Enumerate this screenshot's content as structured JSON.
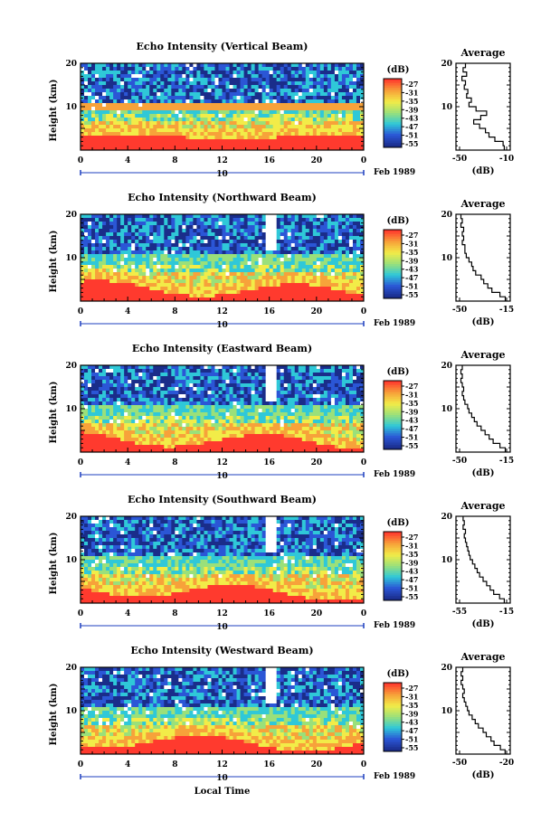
{
  "figure": {
    "xlabel": "Local Time",
    "date_label": "Feb 1989",
    "day_label": "10",
    "colorbar_unit": "(dB)",
    "colorbar_ticks": [
      "-27",
      "-31",
      "-35",
      "-39",
      "-43",
      "-47",
      "-51",
      "-55"
    ],
    "colors": {
      "red": "#ff3a2e",
      "orange": "#f7a23a",
      "yellow": "#f2ec48",
      "green": "#9ae07a",
      "cyan": "#2fc8d8",
      "blue": "#2b56d6",
      "navy": "#1a2d8a",
      "axis_marker": "#1d3fbf"
    }
  },
  "chart_data": [
    {
      "type": "heatmap",
      "title": "Echo Intensity (Vertical Beam)",
      "ylabel": "Height (km)",
      "xlim": [
        0,
        24
      ],
      "ylim": [
        0,
        20
      ],
      "x_ticks": [
        "0",
        "4",
        "8",
        "12",
        "16",
        "20",
        "0"
      ],
      "y_ticks": [
        "20",
        "10"
      ],
      "colorbar": {
        "label": "(dB)",
        "range": [
          -55,
          -27
        ],
        "ticks": [
          "-27",
          "-31",
          "-35",
          "-39",
          "-43",
          "-47",
          "-51",
          "-55"
        ]
      },
      "average_profile": {
        "title": "Average",
        "xlabel": "(dB)",
        "xlim": [
          -50,
          -10
        ],
        "x_ticks": [
          "-50",
          "-10"
        ],
        "y_ticks": [
          "20",
          "10"
        ],
        "height_km": [
          1,
          2,
          3,
          4,
          5,
          6,
          7,
          8,
          9,
          10,
          11,
          12,
          13,
          14,
          15,
          16,
          17,
          18,
          19,
          20
        ],
        "db": [
          -12,
          -13,
          -20,
          -25,
          -28,
          -33,
          -38,
          -32,
          -27,
          -36,
          -42,
          -40,
          -44,
          -43,
          -46,
          -45,
          -48,
          -44,
          -47,
          -45
        ]
      }
    },
    {
      "type": "heatmap",
      "title": "Echo Intensity (Northward Beam)",
      "ylabel": "Height (km)",
      "xlim": [
        0,
        24
      ],
      "ylim": [
        0,
        20
      ],
      "x_ticks": [
        "0",
        "4",
        "8",
        "12",
        "16",
        "20",
        "0"
      ],
      "y_ticks": [
        "20",
        "10"
      ],
      "colorbar": {
        "label": "(dB)",
        "range": [
          -55,
          -27
        ],
        "ticks": [
          "-27",
          "-31",
          "-35",
          "-39",
          "-43",
          "-47",
          "-51",
          "-55"
        ]
      },
      "average_profile": {
        "title": "Average",
        "xlabel": "(dB)",
        "xlim": [
          -50,
          -15
        ],
        "x_ticks": [
          "-50",
          "-15"
        ],
        "y_ticks": [
          "20",
          "10"
        ],
        "height_km": [
          1,
          2,
          3,
          4,
          5,
          6,
          7,
          8,
          9,
          10,
          11,
          12,
          13,
          14,
          15,
          16,
          17,
          18,
          19,
          20
        ],
        "db": [
          -16,
          -20,
          -26,
          -29,
          -32,
          -34,
          -38,
          -40,
          -41,
          -43,
          -45,
          -46,
          -46,
          -48,
          -47,
          -48,
          -47,
          -49,
          -48,
          -49
        ]
      }
    },
    {
      "type": "heatmap",
      "title": "Echo Intensity (Eastward Beam)",
      "ylabel": "Height (km)",
      "xlim": [
        0,
        24
      ],
      "ylim": [
        0,
        20
      ],
      "x_ticks": [
        "0",
        "4",
        "8",
        "12",
        "16",
        "20",
        "0"
      ],
      "y_ticks": [
        "20",
        "10"
      ],
      "colorbar": {
        "label": "(dB)",
        "range": [
          -55,
          -27
        ],
        "ticks": [
          "-27",
          "-31",
          "-35",
          "-39",
          "-43",
          "-47",
          "-51",
          "-55"
        ]
      },
      "average_profile": {
        "title": "Average",
        "xlabel": "(dB)",
        "xlim": [
          -50,
          -15
        ],
        "x_ticks": [
          "-50",
          "-15"
        ],
        "y_ticks": [
          "20",
          "10"
        ],
        "height_km": [
          1,
          2,
          3,
          4,
          5,
          6,
          7,
          8,
          9,
          10,
          11,
          12,
          13,
          14,
          15,
          16,
          17,
          18,
          19,
          20
        ],
        "db": [
          -16,
          -20,
          -25,
          -28,
          -31,
          -34,
          -37,
          -39,
          -41,
          -43,
          -44,
          -46,
          -47,
          -48,
          -47,
          -48,
          -49,
          -48,
          -49,
          -48
        ]
      }
    },
    {
      "type": "heatmap",
      "title": "Echo Intensity (Southward Beam)",
      "ylabel": "Height (km)",
      "xlim": [
        0,
        24
      ],
      "ylim": [
        0,
        20
      ],
      "x_ticks": [
        "0",
        "4",
        "8",
        "12",
        "16",
        "20",
        "0"
      ],
      "y_ticks": [
        "20",
        "10"
      ],
      "colorbar": {
        "label": "(dB)",
        "range": [
          -55,
          -27
        ],
        "ticks": [
          "-27",
          "-31",
          "-35",
          "-39",
          "-43",
          "-47",
          "-51",
          "-55"
        ]
      },
      "average_profile": {
        "title": "Average",
        "xlabel": "(dB)",
        "xlim": [
          -55,
          -15
        ],
        "x_ticks": [
          "-55",
          "-15"
        ],
        "y_ticks": [
          "20",
          "10"
        ],
        "height_km": [
          1,
          2,
          3,
          4,
          5,
          6,
          7,
          8,
          9,
          10,
          11,
          12,
          13,
          14,
          15,
          16,
          17,
          18,
          19,
          20
        ],
        "db": [
          -17,
          -21,
          -26,
          -29,
          -32,
          -35,
          -38,
          -40,
          -42,
          -44,
          -46,
          -47,
          -48,
          -49,
          -50,
          -51,
          -50,
          -52,
          -51,
          -52
        ]
      }
    },
    {
      "type": "heatmap",
      "title": "Echo Intensity (Westward Beam)",
      "ylabel": "Height (km)",
      "xlim": [
        0,
        24
      ],
      "ylim": [
        0,
        20
      ],
      "x_ticks": [
        "0",
        "4",
        "8",
        "12",
        "16",
        "20",
        "0"
      ],
      "y_ticks": [
        "20",
        "10"
      ],
      "colorbar": {
        "label": "(dB)",
        "range": [
          -55,
          -27
        ],
        "ticks": [
          "-27",
          "-31",
          "-35",
          "-39",
          "-43",
          "-47",
          "-51",
          "-55"
        ]
      },
      "average_profile": {
        "title": "Average",
        "xlabel": "(dB)",
        "xlim": [
          -50,
          -20
        ],
        "x_ticks": [
          "-50",
          "-20"
        ],
        "y_ticks": [
          "20",
          "10"
        ],
        "height_km": [
          1,
          2,
          3,
          4,
          5,
          6,
          7,
          8,
          9,
          10,
          11,
          12,
          13,
          14,
          15,
          16,
          17,
          18,
          19,
          20
        ],
        "db": [
          -21,
          -24,
          -28,
          -30,
          -33,
          -35,
          -38,
          -40,
          -42,
          -44,
          -45,
          -46,
          -47,
          -48,
          -47,
          -48,
          -49,
          -48,
          -49,
          -48
        ]
      }
    }
  ]
}
